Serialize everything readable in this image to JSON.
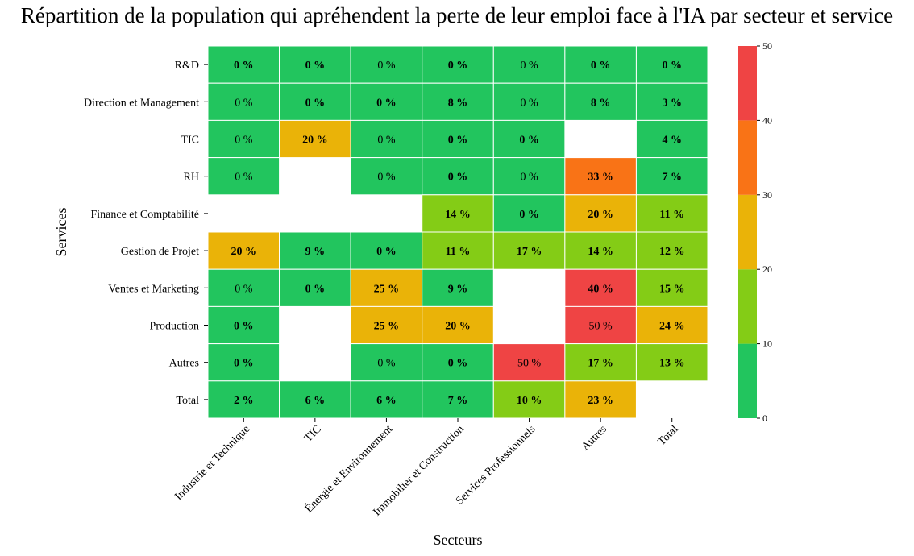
{
  "chart_data": {
    "type": "heatmap",
    "title": "Répartition de la population qui apréhendent la perte de leur emploi face à l'IA par secteur et service",
    "xlabel": "Secteurs",
    "ylabel": "Services",
    "x_categories": [
      "Industrie et Technique",
      "TIC",
      "Énergie et Environnement",
      "Immobilier et Construction",
      "Services Professionnels",
      "Autres",
      "Total"
    ],
    "y_categories": [
      "R&D",
      "Direction et Management",
      "TIC",
      "RH",
      "Finance et Comptabilité",
      "Gestion de Projet",
      "Ventes et Marketing",
      "Production",
      "Autres",
      "Total"
    ],
    "values": [
      [
        0,
        0,
        0,
        0,
        0,
        0,
        0
      ],
      [
        0,
        0,
        0,
        8,
        0,
        8,
        3
      ],
      [
        0,
        20,
        0,
        0,
        0,
        null,
        4
      ],
      [
        0,
        null,
        0,
        0,
        0,
        33,
        7
      ],
      [
        null,
        null,
        null,
        14,
        0,
        20,
        11
      ],
      [
        20,
        9,
        0,
        11,
        17,
        14,
        12
      ],
      [
        0,
        0,
        25,
        9,
        null,
        40,
        15
      ],
      [
        0,
        null,
        25,
        20,
        null,
        50,
        24
      ],
      [
        0,
        null,
        0,
        0,
        50,
        17,
        13
      ],
      [
        2,
        6,
        6,
        7,
        10,
        23,
        null
      ]
    ],
    "cell_labels": [
      [
        "0 %",
        "0 %",
        "0 %",
        "0 %",
        "0 %",
        "0 %",
        "0 %"
      ],
      [
        "0 %",
        "0 %",
        "0 %",
        "8 %",
        "0 %",
        "8 %",
        "3 %"
      ],
      [
        "0 %",
        "20 %",
        "0 %",
        "0 %",
        "0 %",
        "",
        "4 %"
      ],
      [
        "0 %",
        "",
        "0 %",
        "0 %",
        "0 %",
        "33 %",
        "7 %"
      ],
      [
        "",
        "",
        "",
        "14 %",
        "0 %",
        "20 %",
        "11 %"
      ],
      [
        "20 %",
        "9 %",
        "0 %",
        "11 %",
        "17 %",
        "14 %",
        "12 %"
      ],
      [
        "0 %",
        "0 %",
        "25 %",
        "9 %",
        "",
        "40 %",
        "15 %"
      ],
      [
        "0 %",
        "",
        "25 %",
        "20 %",
        "",
        "50 %",
        "24 %"
      ],
      [
        "0 %",
        "",
        "0 %",
        "0 %",
        "50 %",
        "17 %",
        "13 %"
      ],
      [
        "2 %",
        "6 %",
        "6 %",
        "7 %",
        "10 %",
        "23 %",
        ""
      ]
    ],
    "bold": [
      [
        1,
        1,
        0,
        1,
        0,
        1,
        1
      ],
      [
        0,
        1,
        1,
        1,
        0,
        1,
        1
      ],
      [
        0,
        1,
        0,
        1,
        1,
        0,
        1
      ],
      [
        0,
        0,
        0,
        1,
        0,
        1,
        1
      ],
      [
        0,
        0,
        0,
        1,
        1,
        1,
        1
      ],
      [
        1,
        1,
        1,
        1,
        1,
        1,
        1
      ],
      [
        0,
        1,
        1,
        1,
        0,
        1,
        1
      ],
      [
        1,
        0,
        1,
        1,
        0,
        0,
        1
      ],
      [
        1,
        0,
        0,
        1,
        0,
        1,
        1
      ],
      [
        1,
        1,
        1,
        1,
        1,
        1,
        0
      ]
    ],
    "colorbar": {
      "bins": [
        0,
        10,
        20,
        30,
        40,
        50
      ],
      "colors": [
        "#22c55e",
        "#84cc16",
        "#eab308",
        "#f97316",
        "#ef4444"
      ],
      "ticks": [
        0,
        10,
        20,
        30,
        40,
        50
      ],
      "range": [
        0,
        50
      ]
    },
    "grid": false
  }
}
